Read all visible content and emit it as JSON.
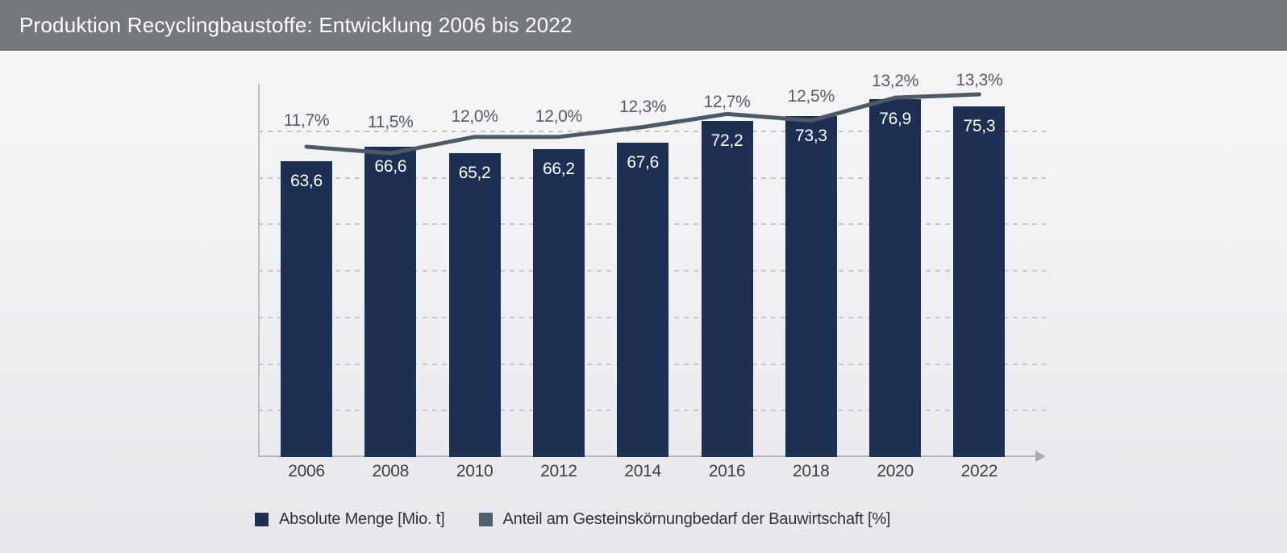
{
  "header": {
    "title": "Produktion Recyclingbaustoffe: Entwicklung 2006 bis 2022"
  },
  "chart_data": {
    "type": "bar",
    "title": "Produktion Recyclingbaustoffe: Entwicklung 2006 bis 2022",
    "categories": [
      "2006",
      "2008",
      "2010",
      "2012",
      "2014",
      "2016",
      "2018",
      "2020",
      "2022"
    ],
    "series": [
      {
        "name": "Absolute Menge [Mio. t]",
        "type": "bar",
        "values": [
          63.6,
          66.6,
          65.2,
          66.2,
          67.6,
          72.2,
          73.3,
          76.9,
          75.3
        ],
        "value_labels": [
          "63,6",
          "66,6",
          "65,2",
          "66,2",
          "67,6",
          "72,2",
          "73,3",
          "76,9",
          "75,3"
        ],
        "color": "#1d3054"
      },
      {
        "name": "Anteil am Gesteinskörnungbedarf der Bauwirtschaft [%]",
        "type": "line",
        "values": [
          11.7,
          11.5,
          12.0,
          12.0,
          12.3,
          12.7,
          12.5,
          13.2,
          13.3
        ],
        "value_labels": [
          "11,7%",
          "11,5%",
          "12,0%",
          "12,0%",
          "12,3%",
          "12,7%",
          "12,5%",
          "13,2%",
          "13,3%"
        ],
        "color": "#4d5965"
      }
    ],
    "xlabel": "",
    "ylabel": "",
    "ylim": [
      0,
      80
    ],
    "grid": "horizontal dashed, every 10 units, no y tick labels",
    "legend_position": "bottom"
  },
  "legend": {
    "items": [
      {
        "label": "Absolute Menge [Mio. t]",
        "color": "#1d3054"
      },
      {
        "label": "Anteil am Gesteinskörnungbedarf der Bauwirtschaft [%]",
        "color": "#4e5f6d"
      }
    ]
  },
  "colors": {
    "header_bg": "#75787d",
    "bar": "#1d3054",
    "trend_line": "#4d5965",
    "grid": "#c4c7cc",
    "axis": "#b4b7bc",
    "pct_text": "#555c66",
    "year_text": "#3b3f46",
    "bar_value_text": "#ffffff"
  }
}
